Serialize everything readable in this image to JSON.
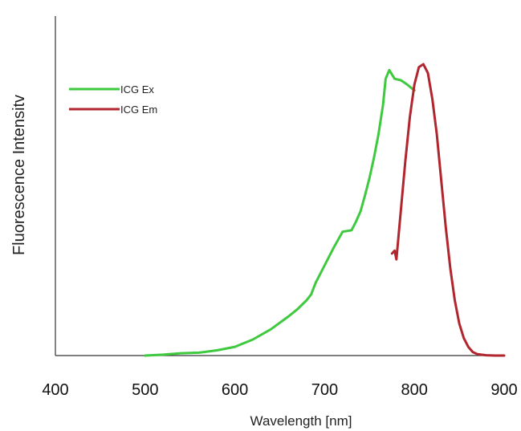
{
  "chart_data": {
    "type": "line",
    "xlabel": "Wavelength [nm]",
    "ylabel": "Fluorescence Intensitv",
    "xlim": [
      400,
      900
    ],
    "ylim": [
      0,
      1
    ],
    "x_ticks": [
      "400",
      "500",
      "600",
      "700",
      "800",
      "900"
    ],
    "y_ticks_shown": false,
    "grid": false,
    "legend": "top-left",
    "series": [
      {
        "name": "ICG Ex",
        "color": "#3ec93e",
        "x": [
          500,
          520,
          540,
          560,
          580,
          600,
          620,
          640,
          660,
          670,
          680,
          685,
          690,
          700,
          710,
          720,
          730,
          735,
          740,
          745,
          750,
          755,
          760,
          765,
          768,
          772,
          778,
          785,
          792,
          800
        ],
        "y": [
          0.0,
          0.003,
          0.008,
          0.01,
          0.018,
          0.03,
          0.055,
          0.09,
          0.135,
          0.16,
          0.19,
          0.21,
          0.25,
          0.31,
          0.37,
          0.425,
          0.43,
          0.46,
          0.495,
          0.55,
          0.61,
          0.68,
          0.76,
          0.86,
          0.95,
          0.98,
          0.95,
          0.945,
          0.93,
          0.91
        ]
      },
      {
        "name": "ICG Em",
        "color": "#b0252e",
        "x": [
          775,
          778,
          780,
          785,
          790,
          795,
          800,
          805,
          810,
          815,
          820,
          825,
          830,
          835,
          840,
          845,
          850,
          855,
          860,
          865,
          870,
          880,
          890,
          900
        ],
        "y": [
          0.35,
          0.36,
          0.33,
          0.5,
          0.67,
          0.82,
          0.93,
          0.99,
          1.0,
          0.97,
          0.88,
          0.76,
          0.6,
          0.44,
          0.3,
          0.19,
          0.11,
          0.06,
          0.03,
          0.012,
          0.005,
          0.001,
          0.0,
          0.0
        ]
      }
    ]
  }
}
